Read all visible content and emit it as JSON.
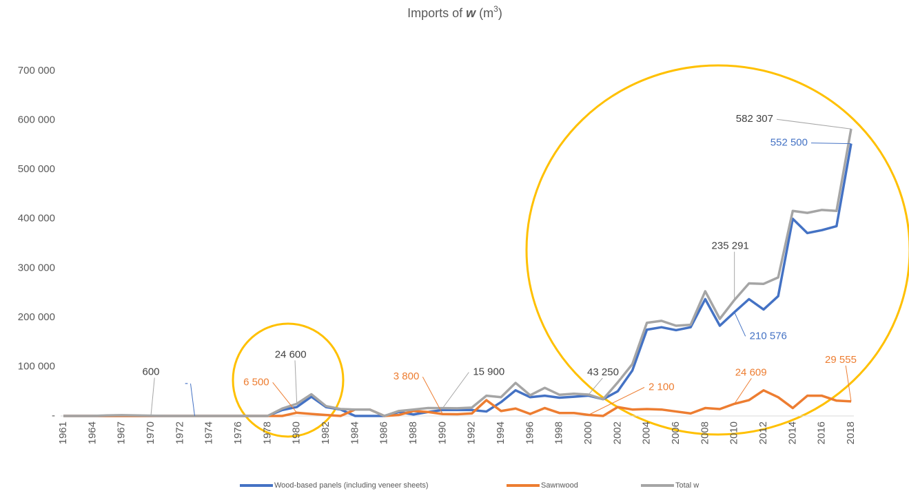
{
  "chart_data": {
    "type": "line",
    "title": [
      "Imports of ",
      "w",
      " (m",
      "3",
      ")"
    ],
    "categories": [
      "1961",
      null,
      "1964",
      null,
      "1967",
      null,
      "1970",
      null,
      "1972",
      null,
      "1974",
      null,
      "1976",
      null,
      "1978",
      null,
      "1980",
      null,
      "1982",
      null,
      "1984",
      null,
      "1986",
      null,
      "1988",
      null,
      "1990",
      null,
      "1992",
      null,
      "1994",
      null,
      "1996",
      null,
      "1998",
      null,
      "2000",
      null,
      "2002",
      null,
      "2004",
      null,
      "2006",
      null,
      "2008",
      null,
      "2010",
      null,
      "2012",
      null,
      "2014",
      null,
      "2016",
      null,
      "2018"
    ],
    "ylim": [
      0,
      700000
    ],
    "yticks": [
      {
        "value": 0,
        "label": "-"
      },
      {
        "value": 100000,
        "label": "100 000"
      },
      {
        "value": 200000,
        "label": "200 000"
      },
      {
        "value": 300000,
        "label": "300 000"
      },
      {
        "value": 400000,
        "label": "400 000"
      },
      {
        "value": 500000,
        "label": "500 000"
      },
      {
        "value": 600000,
        "label": "600 000"
      },
      {
        "value": 700000,
        "label": "700 000"
      }
    ],
    "grid": false,
    "legend": "bottom",
    "series": [
      {
        "name": "Wood-based panels (including veneer sheets)",
        "color": "#4472c4",
        "values": [
          0,
          0,
          0,
          0,
          0,
          0,
          0,
          0,
          0,
          0,
          0,
          0,
          0,
          0,
          0,
          12000,
          18100,
          39000,
          18000,
          13000,
          0,
          0,
          0,
          8000,
          3000,
          8000,
          12100,
          12000,
          12000,
          9000,
          28000,
          52000,
          38000,
          41000,
          37000,
          39000,
          41150,
          34000,
          50000,
          92000,
          175000,
          180000,
          174000,
          180000,
          237000,
          183000,
          210576,
          237000,
          216000,
          243000,
          400000,
          371000,
          377000,
          385000,
          552500
        ],
        "value_labels": [
          null,
          null,
          null,
          null,
          null,
          null,
          null,
          null,
          null,
          "-",
          null,
          null,
          null,
          null,
          null,
          null,
          null,
          null,
          null,
          null,
          null,
          null,
          null,
          null,
          null,
          null,
          null,
          null,
          null,
          null,
          null,
          null,
          null,
          null,
          null,
          null,
          null,
          null,
          null,
          null,
          null,
          null,
          null,
          null,
          null,
          null,
          "210 576",
          null,
          null,
          null,
          null,
          null,
          null,
          null,
          "552 500"
        ]
      },
      {
        "name": "Sawnwood",
        "color": "#ed7d31",
        "values": [
          0,
          0,
          0,
          0,
          0,
          0,
          0,
          0,
          0,
          0,
          0,
          0,
          0,
          0,
          0,
          0,
          6500,
          4000,
          2000,
          0,
          13000,
          13000,
          0,
          2000,
          10000,
          8000,
          3800,
          3500,
          5000,
          32000,
          10000,
          15000,
          4000,
          16000,
          6000,
          6000,
          2100,
          0,
          18000,
          13000,
          14000,
          13000,
          9000,
          5000,
          16000,
          14000,
          24609,
          32000,
          52000,
          38000,
          16000,
          41000,
          41000,
          31000,
          29555
        ],
        "value_labels": [
          null,
          null,
          null,
          null,
          null,
          null,
          null,
          null,
          null,
          null,
          null,
          null,
          null,
          null,
          null,
          null,
          "6 500",
          null,
          null,
          null,
          null,
          null,
          null,
          null,
          null,
          null,
          "3 800",
          null,
          null,
          null,
          null,
          null,
          null,
          null,
          null,
          null,
          "2 100",
          null,
          null,
          null,
          null,
          null,
          null,
          null,
          null,
          null,
          "24 609",
          null,
          null,
          null,
          null,
          null,
          null,
          null,
          "29 555"
        ]
      },
      {
        "name": "Total w",
        "color": "#a5a5a5",
        "values": [
          0,
          0,
          0,
          1000,
          1500,
          1000,
          600,
          0,
          0,
          0,
          0,
          0,
          0,
          0,
          0,
          15000,
          24600,
          44000,
          20000,
          14000,
          13000,
          13000,
          0,
          10000,
          13000,
          16000,
          15900,
          15500,
          17000,
          41000,
          38000,
          67000,
          42000,
          57000,
          43000,
          45000,
          43250,
          34000,
          68000,
          105000,
          189000,
          193000,
          183000,
          185000,
          253000,
          197000,
          235291,
          269000,
          268000,
          281000,
          416000,
          412000,
          418000,
          416000,
          582307
        ],
        "value_labels": [
          null,
          null,
          null,
          null,
          null,
          null,
          "600",
          null,
          null,
          null,
          null,
          null,
          null,
          null,
          null,
          null,
          "24 600",
          null,
          null,
          null,
          null,
          null,
          null,
          null,
          null,
          null,
          "15 900",
          null,
          null,
          null,
          null,
          null,
          null,
          null,
          null,
          null,
          "43 250",
          null,
          null,
          null,
          null,
          null,
          null,
          null,
          null,
          null,
          "235 291",
          null,
          null,
          null,
          null,
          null,
          null,
          null,
          "582 307"
        ]
      }
    ]
  }
}
